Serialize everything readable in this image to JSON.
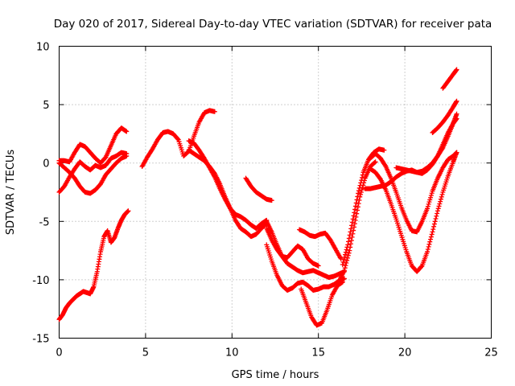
{
  "chart_data": {
    "type": "scatter",
    "title": "Day 020 of 2017, Sidereal Day-to-day VTEC variation (SDTVAR) for receiver pata",
    "xlabel": "GPS time / hours",
    "ylabel": "SDTVAR / TECUs",
    "xlim": [
      0,
      25
    ],
    "ylim": [
      -15,
      10
    ],
    "xticks": [
      "0",
      "5",
      "10",
      "15",
      "20",
      "25"
    ],
    "yticks": [
      "10",
      "5",
      "0",
      "-5",
      "-10",
      "-15"
    ],
    "grid": true,
    "marker": "plus",
    "color": "#ff0000",
    "series": [
      {
        "x": [
          0,
          0.2,
          0.4,
          0.6,
          0.8,
          1,
          1.2,
          1.4,
          1.6,
          1.8,
          2,
          2.2,
          2.4,
          2.6,
          2.8,
          3,
          3.2,
          3.4,
          3.6,
          3.8,
          4
        ],
        "y": [
          -13.4,
          -13,
          -12.4,
          -12,
          -11.7,
          -11.4,
          -11.2,
          -11,
          -11.1,
          -11.2,
          -10.6,
          -9.3,
          -7.6,
          -6.3,
          -5.8,
          -6.8,
          -6.4,
          -5.6,
          -4.9,
          -4.4,
          -4.1
        ]
      },
      {
        "x": [
          0,
          0.3,
          0.6,
          0.9,
          1.2,
          1.5,
          1.8,
          2.1,
          2.4,
          2.7,
          3,
          3.3,
          3.6,
          3.9
        ],
        "y": [
          0.2,
          0.2,
          0.1,
          0.9,
          1.6,
          1.4,
          0.9,
          0.4,
          0,
          0.5,
          1.5,
          2.5,
          3,
          2.7
        ]
      },
      {
        "x": [
          0,
          0.3,
          0.6,
          0.9,
          1.2,
          1.5,
          1.8,
          2.1,
          2.4,
          2.7,
          3,
          3.3,
          3.6,
          3.9
        ],
        "y": [
          -2.5,
          -2,
          -1.2,
          -0.5,
          0.1,
          -0.3,
          -0.6,
          -0.2,
          -0.4,
          -0.2,
          0.4,
          0.6,
          0.9,
          0.8
        ]
      },
      {
        "x": [
          0,
          0.3,
          0.6,
          0.9,
          1.2,
          1.5,
          1.8,
          2.1,
          2.4,
          2.7,
          3,
          3.3,
          3.6,
          3.9
        ],
        "y": [
          0,
          -0.4,
          -0.8,
          -1.3,
          -2,
          -2.5,
          -2.6,
          -2.3,
          -1.8,
          -1,
          -0.5,
          0,
          0.4,
          0.6
        ]
      },
      {
        "x": [
          4.8,
          5.1,
          5.4,
          5.7,
          6,
          6.3,
          6.6,
          6.9,
          7.2,
          7.5,
          7.8,
          8.1,
          8.4,
          8.7,
          9
        ],
        "y": [
          -0.3,
          0.5,
          1.2,
          2,
          2.6,
          2.7,
          2.5,
          2,
          0.6,
          1,
          2.3,
          3.5,
          4.3,
          4.5,
          4.4
        ]
      },
      {
        "x": [
          7.5,
          7.8,
          8.1,
          8.4,
          8.7,
          9,
          9.3,
          9.6,
          9.9,
          10.2,
          10.5,
          10.8,
          11.1,
          11.4,
          11.7,
          12
        ],
        "y": [
          1.9,
          1.7,
          1.1,
          0.4,
          -0.4,
          -1.2,
          -2.2,
          -3.1,
          -3.9,
          -4.4,
          -4.6,
          -4.9,
          -5.3,
          -5.6,
          -5.2,
          -4.9
        ]
      },
      {
        "x": [
          7.5,
          7.8,
          8.1,
          8.4,
          8.7,
          9,
          9.3,
          9.6,
          9.9,
          10.2,
          10.5,
          10.8,
          11.1,
          11.4,
          11.7,
          12
        ],
        "y": [
          1.1,
          0.8,
          0.5,
          0.2,
          -0.3,
          -0.9,
          -1.8,
          -2.9,
          -3.9,
          -4.9,
          -5.6,
          -5.9,
          -6.3,
          -6.1,
          -5.6,
          -5.2
        ]
      },
      {
        "x": [
          10.8,
          11.1,
          11.4,
          11.7,
          12,
          12.3
        ],
        "y": [
          -1.3,
          -2,
          -2.5,
          -2.8,
          -3.1,
          -3.2
        ]
      },
      {
        "x": [
          12,
          12.3,
          12.6,
          12.9,
          13.2,
          13.5,
          13.8,
          14.1,
          14.4,
          14.7,
          15,
          15.3,
          15.6,
          15.9,
          16.2,
          16.5
        ],
        "y": [
          -5,
          -5.9,
          -7,
          -8,
          -8.6,
          -8.9,
          -9.2,
          -9.4,
          -9.3,
          -9.2,
          -9.4,
          -9.6,
          -9.8,
          -9.7,
          -9.5,
          -9.3
        ]
      },
      {
        "x": [
          12,
          12.3,
          12.6,
          12.9,
          13.2,
          13.5,
          13.8,
          14.1,
          14.4,
          14.7,
          15
        ],
        "y": [
          -5.6,
          -6.6,
          -7.4,
          -8,
          -8.1,
          -7.6,
          -7.1,
          -7.4,
          -8.2,
          -8.6,
          -8.8
        ]
      },
      {
        "x": [
          12,
          12.3,
          12.6,
          12.9,
          13.2,
          13.5,
          13.8,
          14.1,
          14.4,
          14.7,
          15,
          15.3,
          15.6,
          15.9,
          16.2,
          16.5
        ],
        "y": [
          -7,
          -8.4,
          -9.6,
          -10.5,
          -10.9,
          -10.7,
          -10.3,
          -10.2,
          -10.5,
          -10.9,
          -10.8,
          -10.6,
          -10.6,
          -10.4,
          -10.1,
          -9.9
        ]
      },
      {
        "x": [
          14,
          14.3,
          14.6,
          14.9,
          15.2,
          15.5,
          15.8,
          16.1,
          16.4
        ],
        "y": [
          -10.8,
          -12,
          -13.2,
          -13.9,
          -13.7,
          -12.6,
          -11.3,
          -10.5,
          -10.2
        ]
      },
      {
        "x": [
          13.9,
          14.2,
          14.5,
          14.8,
          15.1,
          15.4,
          15.7,
          16,
          16.3
        ],
        "y": [
          -5.7,
          -5.9,
          -6.2,
          -6.3,
          -6.1,
          -6,
          -6.6,
          -7.4,
          -8.2
        ]
      },
      {
        "x": [
          16.2,
          16.5,
          16.8,
          17.1,
          17.4,
          17.7,
          18,
          18.3
        ],
        "y": [
          -10.1,
          -9.2,
          -7.5,
          -5.2,
          -2.9,
          -1.3,
          -0.3,
          0.1
        ]
      },
      {
        "x": [
          16.4,
          16.7,
          17,
          17.3,
          17.6,
          17.9,
          18.2,
          18.5,
          18.8
        ],
        "y": [
          -8.7,
          -7,
          -4.8,
          -2.6,
          -0.8,
          0.3,
          0.9,
          1.2,
          1.1
        ]
      },
      {
        "x": [
          18,
          18.3,
          18.6,
          18.9,
          19.2,
          19.5,
          19.8,
          20.1,
          20.4,
          20.7,
          21,
          21.3,
          21.6,
          21.9,
          22.2,
          22.5,
          22.8,
          23
        ],
        "y": [
          0.4,
          0.8,
          0.4,
          -0.3,
          -1.3,
          -2.5,
          -3.8,
          -4.9,
          -5.8,
          -5.9,
          -5,
          -3.9,
          -2.4,
          -1.3,
          -0.4,
          0.3,
          0.6,
          0.9
        ]
      },
      {
        "x": [
          18,
          18.3,
          18.6,
          18.9,
          19.2,
          19.5,
          19.8,
          20.1,
          20.4,
          20.7,
          21,
          21.3,
          21.6,
          21.9,
          22.2,
          22.5,
          22.8,
          23
        ],
        "y": [
          -0.5,
          -0.8,
          -1.4,
          -2.3,
          -3.5,
          -4.8,
          -6.2,
          -7.6,
          -8.8,
          -9.3,
          -8.8,
          -7.6,
          -5.9,
          -4.1,
          -2.5,
          -1.1,
          0.1,
          0.9
        ]
      },
      {
        "x": [
          17.7,
          18,
          18.3,
          18.6,
          18.9,
          19.2,
          19.5,
          19.8,
          20.1,
          20.4,
          20.7,
          21,
          21.3,
          21.6,
          21.9,
          22.2,
          22.5,
          22.8,
          23
        ],
        "y": [
          -2.2,
          -2.2,
          -2.1,
          -2,
          -1.9,
          -1.6,
          -1.2,
          -0.9,
          -0.7,
          -0.6,
          -0.8,
          -0.9,
          -0.6,
          -0.1,
          0.6,
          1.6,
          2.6,
          3.4,
          3.8
        ]
      },
      {
        "x": [
          19.5,
          19.8,
          20.1,
          20.4,
          20.7,
          21,
          21.3,
          21.6,
          21.9,
          22.2,
          22.5,
          22.8,
          23
        ],
        "y": [
          -0.4,
          -0.5,
          -0.6,
          -0.7,
          -0.8,
          -0.7,
          -0.4,
          0,
          0.6,
          1.3,
          2.3,
          3.4,
          4.2
        ]
      },
      {
        "x": [
          21.6,
          21.9,
          22.2,
          22.5,
          22.8,
          23
        ],
        "y": [
          2.6,
          3,
          3.5,
          4.1,
          4.8,
          5.3
        ]
      },
      {
        "x": [
          22.2,
          22.5,
          22.8,
          23
        ],
        "y": [
          6.4,
          7,
          7.6,
          8
        ]
      }
    ]
  }
}
